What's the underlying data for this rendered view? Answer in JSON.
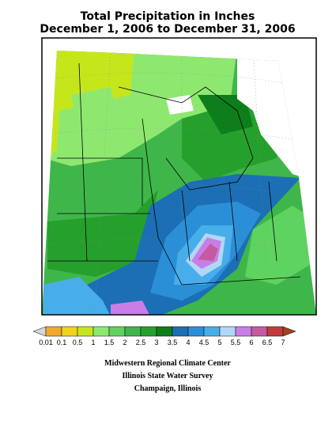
{
  "header": {
    "title": "Total Precipitation in Inches",
    "subtitle": "December 1, 2006 to December 31, 2006"
  },
  "legend": {
    "labels": [
      "0.01",
      "0.1",
      "0.5",
      "1",
      "1.5",
      "2",
      "2.5",
      "3",
      "3.5",
      "4",
      "4.5",
      "5",
      "5.5",
      "6",
      "6.5",
      "7"
    ],
    "colors": [
      "#f0a830",
      "#f2d21a",
      "#c6e61c",
      "#8ee870",
      "#5fd35f",
      "#3fb64a",
      "#26a02c",
      "#0e7e1c",
      "#1c6fb4",
      "#2b8fd8",
      "#48aeea",
      "#b0d8f6",
      "#c87ee6",
      "#c55a9f",
      "#c03c3c"
    ],
    "below_color": "#d8d8d8",
    "above_color": "#a3431a"
  },
  "credits": [
    "Midwestern Regional Climate Center",
    "Illinois State Water Survey",
    "Champaign, Illinois"
  ]
}
